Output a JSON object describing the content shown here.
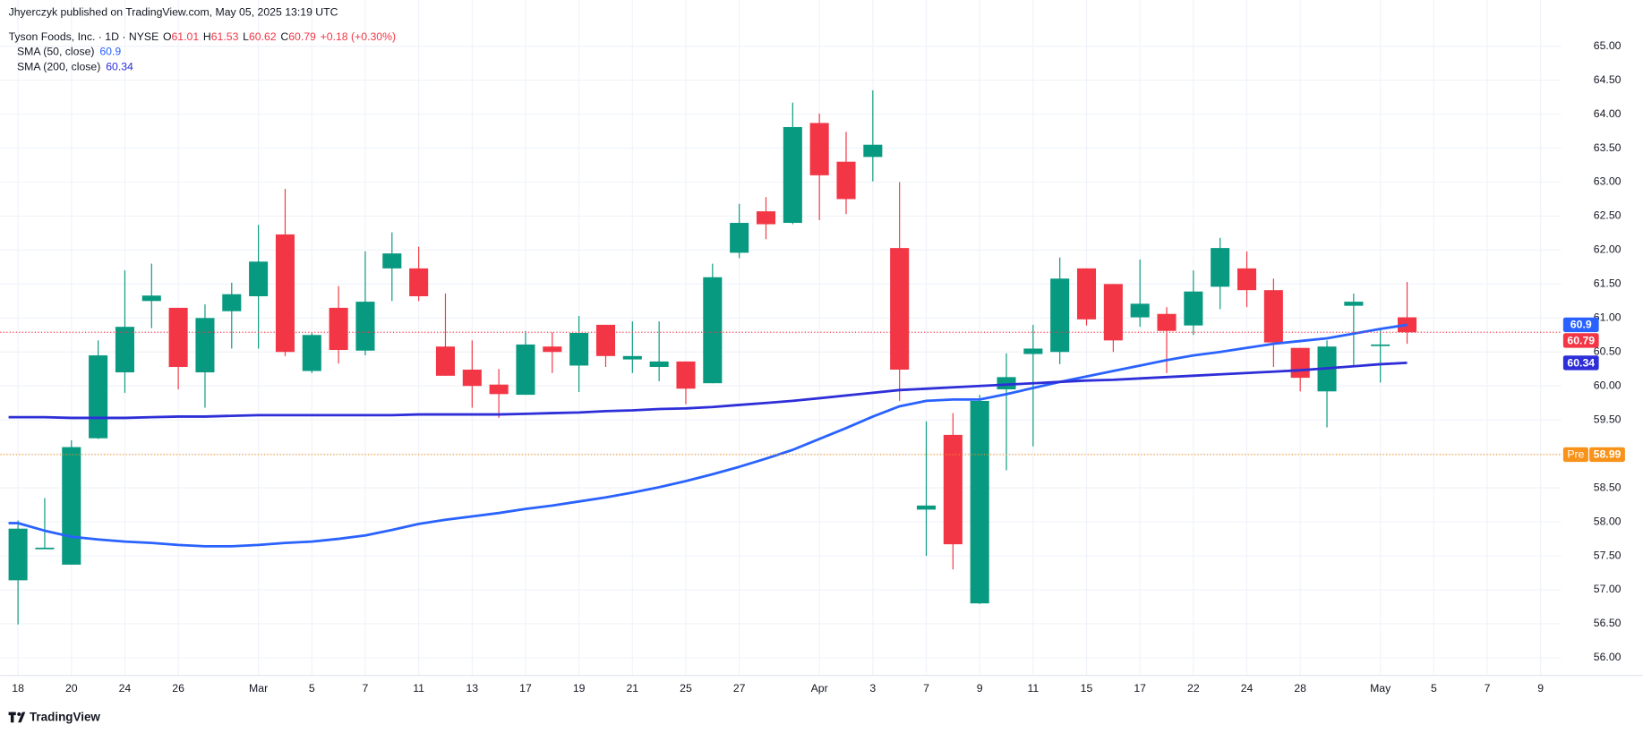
{
  "header": {
    "published": "Jhyerczyk published on TradingView.com, May 05, 2025 13:19 UTC"
  },
  "chart_data": {
    "type": "candlestick",
    "title": "Tyson Foods, Inc. · 1D · NYSE",
    "ohlc_labels": [
      "O",
      "H",
      "L",
      "C"
    ],
    "change_label": "+0.18 (+0.30%)",
    "categories": [
      "18",
      null,
      "20",
      null,
      "24",
      null,
      "26",
      null,
      null,
      "Mar",
      null,
      "5",
      null,
      "7",
      null,
      "11",
      null,
      "13",
      null,
      "17",
      null,
      "19",
      null,
      "21",
      null,
      "25",
      null,
      "27",
      null,
      null,
      "Apr",
      null,
      "3",
      null,
      "7",
      null,
      "9",
      null,
      "11",
      null,
      "15",
      null,
      "17",
      null,
      "22",
      null,
      "24",
      null,
      "28",
      null,
      null,
      "May",
      null,
      "5",
      null,
      "7",
      null,
      "9"
    ],
    "open": [
      57.14,
      57.6,
      57.37,
      59.23,
      60.2,
      61.25,
      61.15,
      60.2,
      61.1,
      61.32,
      62.23,
      60.22,
      61.15,
      60.52,
      61.73,
      61.73,
      60.58,
      60.24,
      60.02,
      59.87,
      60.58,
      60.3,
      60.9,
      60.39,
      60.28,
      60.36,
      60.04,
      61.96,
      62.57,
      62.4,
      63.87,
      63.3,
      63.37,
      62.03,
      58.18,
      59.28,
      56.8,
      59.95,
      60.47,
      60.5,
      61.73,
      61.5,
      61.01,
      61.06,
      60.89,
      61.46,
      61.73,
      61.41,
      60.56,
      59.92,
      61.18,
      60.59,
      61.01,
      null,
      null,
      null,
      null,
      null
    ],
    "high": [
      58.02,
      58.35,
      59.2,
      60.67,
      61.7,
      61.8,
      61.15,
      61.2,
      61.52,
      62.37,
      62.9,
      60.78,
      61.47,
      61.98,
      62.26,
      62.05,
      61.36,
      60.67,
      60.25,
      60.81,
      60.79,
      61.03,
      60.9,
      60.95,
      60.95,
      60.36,
      61.8,
      62.68,
      62.78,
      64.17,
      64.01,
      63.74,
      64.35,
      63.0,
      59.48,
      59.6,
      59.87,
      60.48,
      60.9,
      61.89,
      61.73,
      61.5,
      61.86,
      61.16,
      61.7,
      62.18,
      61.98,
      61.58,
      60.56,
      60.67,
      61.36,
      60.85,
      61.53,
      null,
      null,
      null,
      null,
      null
    ],
    "low": [
      56.49,
      57.6,
      57.37,
      59.22,
      59.9,
      60.85,
      59.95,
      59.68,
      60.55,
      60.55,
      60.44,
      60.19,
      60.33,
      60.45,
      61.25,
      61.25,
      60.15,
      59.68,
      59.53,
      59.87,
      60.19,
      59.91,
      60.28,
      60.19,
      60.07,
      59.73,
      60.04,
      61.88,
      62.16,
      62.38,
      62.44,
      62.53,
      63.01,
      59.78,
      57.5,
      57.3,
      56.79,
      58.76,
      59.11,
      60.32,
      60.89,
      60.5,
      60.87,
      60.19,
      60.75,
      61.13,
      61.16,
      60.28,
      59.92,
      59.39,
      60.3,
      60.05,
      60.62,
      null,
      null,
      null,
      null,
      null
    ],
    "close": [
      57.9,
      57.62,
      59.1,
      60.45,
      60.87,
      61.33,
      60.28,
      61.0,
      61.35,
      61.83,
      60.5,
      60.75,
      60.53,
      61.24,
      61.95,
      61.32,
      60.15,
      60.0,
      59.88,
      60.61,
      60.5,
      60.78,
      60.44,
      60.44,
      60.36,
      59.96,
      61.6,
      62.4,
      62.38,
      63.81,
      63.1,
      62.75,
      63.55,
      60.24,
      58.24,
      57.67,
      59.78,
      60.13,
      60.55,
      61.58,
      60.98,
      60.67,
      61.21,
      60.81,
      61.39,
      62.03,
      61.41,
      60.64,
      60.12,
      60.58,
      61.24,
      60.61,
      60.79,
      null,
      null,
      null,
      null,
      null
    ],
    "up_color": "#089981",
    "down_color": "#f23645",
    "series": [
      {
        "name": "SMA (50, close)",
        "color": "#2962ff",
        "values": [
          57.98,
          57.87,
          57.78,
          57.74,
          57.71,
          57.69,
          57.66,
          57.64,
          57.64,
          57.66,
          57.69,
          57.71,
          57.75,
          57.8,
          57.88,
          57.97,
          58.03,
          58.08,
          58.13,
          58.19,
          58.24,
          58.3,
          58.36,
          58.43,
          58.51,
          58.6,
          58.7,
          58.81,
          58.93,
          59.06,
          59.22,
          59.38,
          59.55,
          59.7,
          59.78,
          59.8,
          59.8,
          59.88,
          59.97,
          60.06,
          60.14,
          60.22,
          60.3,
          60.38,
          60.45,
          60.5,
          60.56,
          60.62,
          60.66,
          60.7,
          60.77,
          60.84,
          60.9,
          null,
          null,
          null,
          null,
          null
        ]
      },
      {
        "name": "SMA (200, close)",
        "color": "#2e2ed9",
        "values": [
          59.54,
          59.54,
          59.53,
          59.53,
          59.53,
          59.54,
          59.55,
          59.55,
          59.56,
          59.57,
          59.57,
          59.57,
          59.57,
          59.57,
          59.57,
          59.58,
          59.58,
          59.58,
          59.58,
          59.59,
          59.6,
          59.61,
          59.63,
          59.64,
          59.66,
          59.67,
          59.69,
          59.72,
          59.75,
          59.78,
          59.82,
          59.86,
          59.9,
          59.94,
          59.96,
          59.98,
          60.0,
          60.02,
          60.04,
          60.06,
          60.08,
          60.09,
          60.11,
          60.13,
          60.15,
          60.17,
          60.19,
          60.21,
          60.23,
          60.26,
          60.29,
          60.32,
          60.34,
          null,
          null,
          null,
          null,
          null
        ]
      }
    ],
    "premarket": {
      "label": "Pre",
      "value": 58.99,
      "color": "#f7931a"
    },
    "ylim": [
      55.74,
      65.68
    ],
    "yticks": [
      {
        "value": 56,
        "label": "56.00"
      },
      {
        "value": 56.5,
        "label": "56.50"
      },
      {
        "value": 57,
        "label": "57.00"
      },
      {
        "value": 57.5,
        "label": "57.50"
      },
      {
        "value": 58,
        "label": "58.00"
      },
      {
        "value": 58.5,
        "label": "58.50"
      },
      {
        "value": 59,
        "label": "59.00"
      },
      {
        "value": 59.5,
        "label": "59.50"
      },
      {
        "value": 60,
        "label": "60.00"
      },
      {
        "value": 60.5,
        "label": "60.50"
      },
      {
        "value": 61,
        "label": "61.00"
      },
      {
        "value": 61.5,
        "label": "61.50"
      },
      {
        "value": 62,
        "label": "62.00"
      },
      {
        "value": 62.5,
        "label": "62.50"
      },
      {
        "value": 63,
        "label": "63.00"
      },
      {
        "value": 63.5,
        "label": "63.50"
      },
      {
        "value": 64,
        "label": "64.00"
      },
      {
        "value": 64.5,
        "label": "64.50"
      },
      {
        "value": 65,
        "label": "65.00"
      }
    ],
    "grid": true
  },
  "footer": {
    "brand": "TradingView"
  }
}
